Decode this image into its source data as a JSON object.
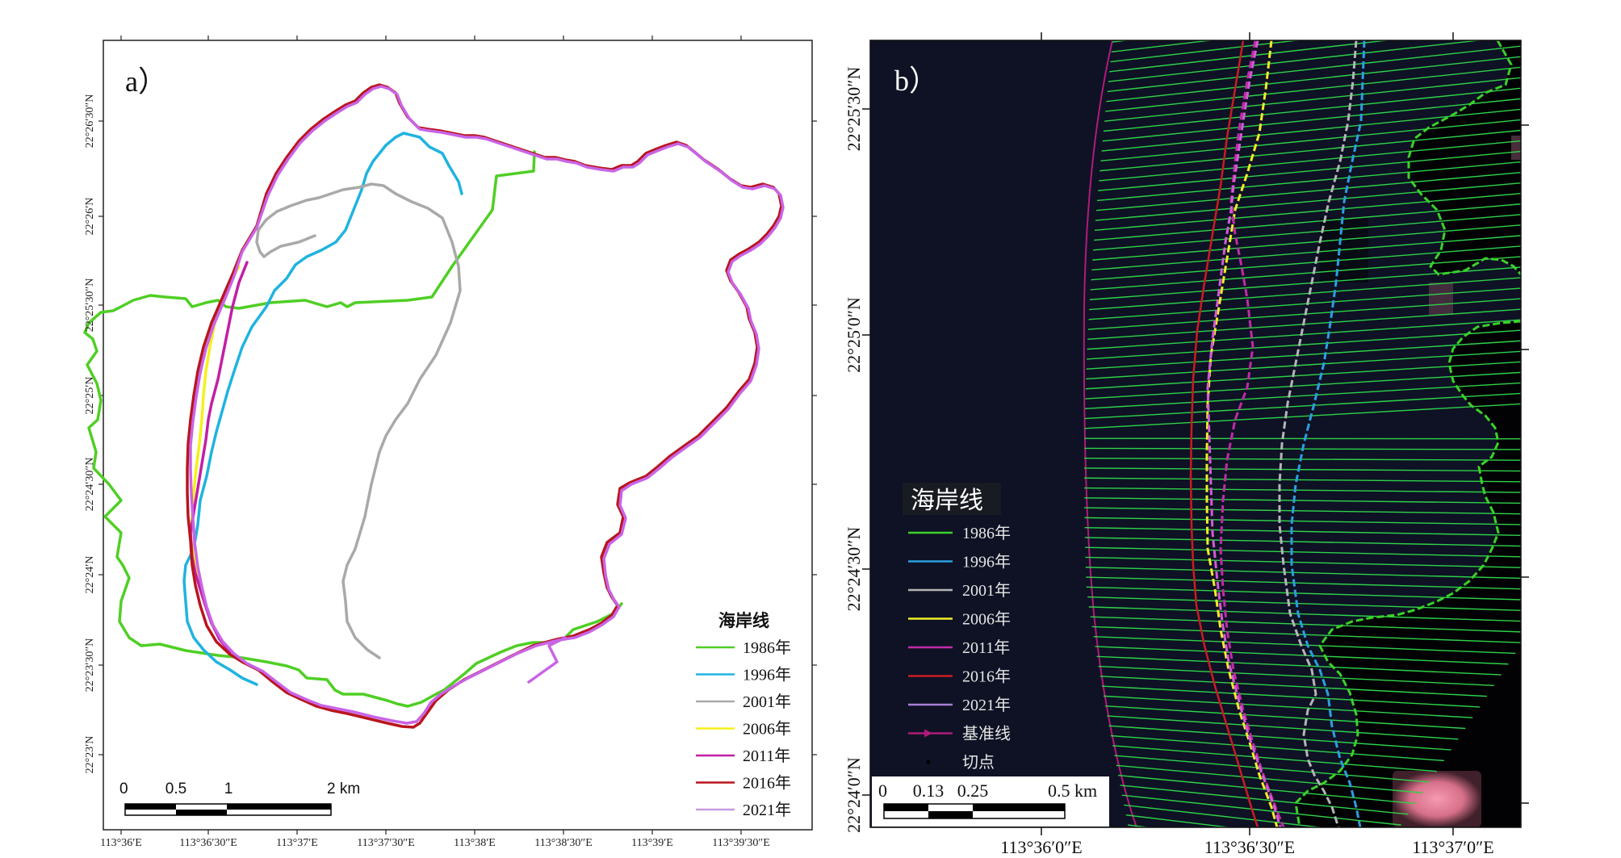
{
  "panel_a": {
    "label": "a）",
    "x_ticks": [
      "113°36′E",
      "113°36′30″E",
      "113°37′E",
      "113°37′30″E",
      "113°38′E",
      "113°38′30″E",
      "113°39′E",
      "113°39′30″E"
    ],
    "y_ticks": [
      "22°26′30″N",
      "22°26′N",
      "22°25′30″N",
      "22°25′N",
      "22°24′30″N",
      "22°24′N",
      "22°23′30″N",
      "22°23′N"
    ],
    "legend": {
      "title": "海岸线",
      "items": [
        {
          "label": "1986年",
          "color": "#4fcf24"
        },
        {
          "label": "1996年",
          "color": "#1fb3e0"
        },
        {
          "label": "2001年",
          "color": "#a9a9a9"
        },
        {
          "label": "2006年",
          "color": "#f5f01a"
        },
        {
          "label": "2011年",
          "color": "#c21fa6"
        },
        {
          "label": "2016年",
          "color": "#b8151d"
        },
        {
          "label": "2021年",
          "color": "#c99be0"
        }
      ]
    },
    "scale": {
      "labels": [
        "0",
        "0.5",
        "1",
        "2 km"
      ]
    }
  },
  "panel_b": {
    "label": "b）",
    "x_ticks": [
      "113°36′0″E",
      "113°36′30″E",
      "113°37′0″E"
    ],
    "y_ticks": [
      "22°25′30″N",
      "22°25′0″N",
      "22°24′30″N",
      "22°24′0″N"
    ],
    "legend": {
      "title": "海岸线",
      "items": [
        {
          "label": "1986年",
          "color": "#3bd12a"
        },
        {
          "label": "1996年",
          "color": "#2a9fe0"
        },
        {
          "label": "2001年",
          "color": "#b5b5b5"
        },
        {
          "label": "2006年",
          "color": "#f2ec2a"
        },
        {
          "label": "2011年",
          "color": "#c22aa8"
        },
        {
          "label": "2016年",
          "color": "#c81d22"
        },
        {
          "label": "2021年",
          "color": "#a87fd6"
        },
        {
          "label": "基准线",
          "color": "#b01a7a"
        },
        {
          "label": "切点",
          "color": "#000000"
        }
      ]
    },
    "scale": {
      "labels": [
        "0",
        "0.13",
        "0.25",
        "0.5 km"
      ]
    }
  },
  "colors": {
    "island_white": "#ffffff",
    "sea_dark": "#0d1020",
    "transect_green": "#2fd24a"
  }
}
